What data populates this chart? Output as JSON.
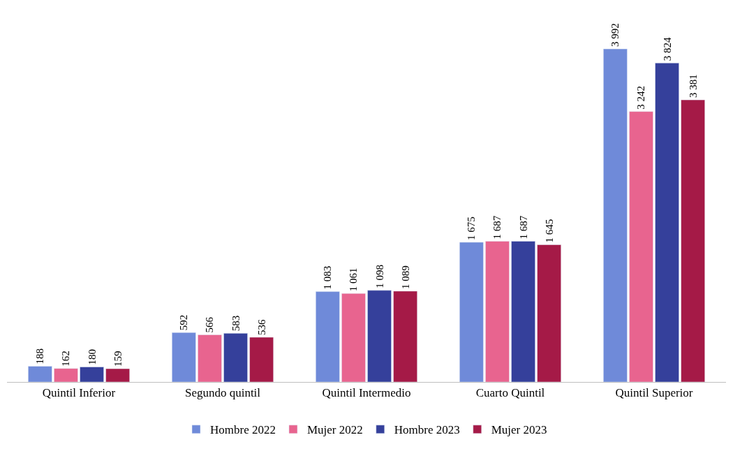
{
  "chart_data": {
    "type": "bar",
    "categories": [
      "Quintil Inferior",
      "Segundo quintil",
      "Quintil Intermedio",
      "Cuarto Quintil",
      "Quintil Superior"
    ],
    "series": [
      {
        "name": "Hombre 2022",
        "color": "#6f8ad9",
        "values": [
          188,
          592,
          1083,
          1675,
          3992
        ],
        "value_labels": [
          "188",
          "592",
          "1 083",
          "1 675",
          "3 992"
        ]
      },
      {
        "name": "Mujer 2022",
        "color": "#e8648f",
        "values": [
          162,
          566,
          1061,
          1687,
          3242
        ],
        "value_labels": [
          "162",
          "566",
          "1 061",
          "1 687",
          "3 242"
        ]
      },
      {
        "name": "Hombre 2023",
        "color": "#35409b",
        "values": [
          180,
          583,
          1098,
          1687,
          3824
        ],
        "value_labels": [
          "180",
          "583",
          "1 098",
          "1 687",
          "3 824"
        ]
      },
      {
        "name": "Mujer 2023",
        "color": "#a51a47",
        "values": [
          159,
          536,
          1089,
          1645,
          3381
        ],
        "value_labels": [
          "159",
          "536",
          "1 089",
          "1 645",
          "3 381"
        ]
      }
    ],
    "legend": "bottom",
    "tick_labels": "x"
  }
}
